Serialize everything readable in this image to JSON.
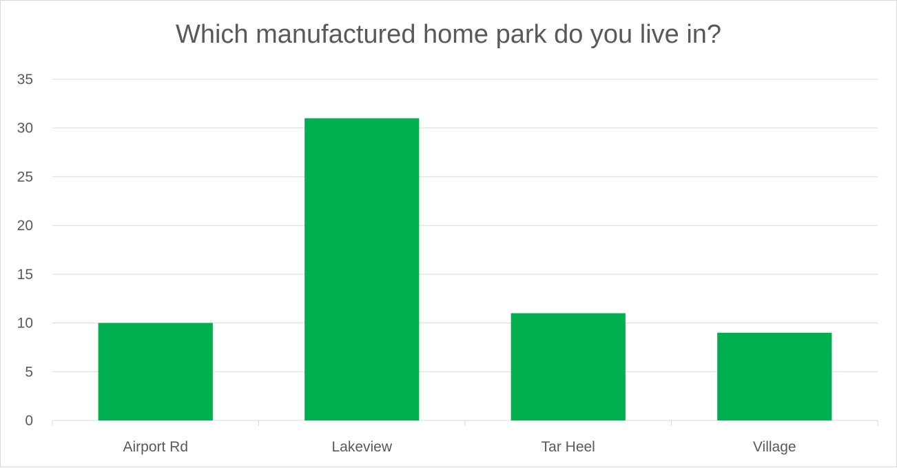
{
  "chart_data": {
    "type": "bar",
    "title": "Which manufactured home park do you live in?",
    "categories": [
      "Airport Rd",
      "Lakeview",
      "Tar Heel",
      "Village"
    ],
    "series": [
      {
        "values": [
          10,
          31,
          11,
          9
        ]
      }
    ],
    "xlabel": "",
    "ylabel": "",
    "ylim": [
      0,
      35
    ],
    "yticks": [
      0,
      5,
      10,
      15,
      20,
      25,
      30,
      35
    ],
    "grid": true,
    "legend": "none",
    "colors": {
      "bar": "#00b050",
      "grid": "#d9d9d9",
      "text": "#595959"
    }
  }
}
